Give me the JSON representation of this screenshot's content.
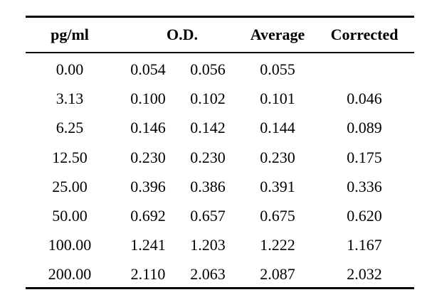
{
  "table": {
    "headers": {
      "conc": "pg/ml",
      "od": "O.D.",
      "average": "Average",
      "corrected": "Corrected"
    },
    "rows": [
      {
        "conc": "0.00",
        "od1": "0.054",
        "od2": "0.056",
        "average": "0.055",
        "corrected": ""
      },
      {
        "conc": "3.13",
        "od1": "0.100",
        "od2": "0.102",
        "average": "0.101",
        "corrected": "0.046"
      },
      {
        "conc": "6.25",
        "od1": "0.146",
        "od2": "0.142",
        "average": "0.144",
        "corrected": "0.089"
      },
      {
        "conc": "12.50",
        "od1": "0.230",
        "od2": "0.230",
        "average": "0.230",
        "corrected": "0.175"
      },
      {
        "conc": "25.00",
        "od1": "0.396",
        "od2": "0.386",
        "average": "0.391",
        "corrected": "0.336"
      },
      {
        "conc": "50.00",
        "od1": "0.692",
        "od2": "0.657",
        "average": "0.675",
        "corrected": "0.620"
      },
      {
        "conc": "100.00",
        "od1": "1.241",
        "od2": "1.203",
        "average": "1.222",
        "corrected": "1.167"
      },
      {
        "conc": "200.00",
        "od1": "2.110",
        "od2": "2.063",
        "average": "2.087",
        "corrected": "2.032"
      }
    ]
  }
}
